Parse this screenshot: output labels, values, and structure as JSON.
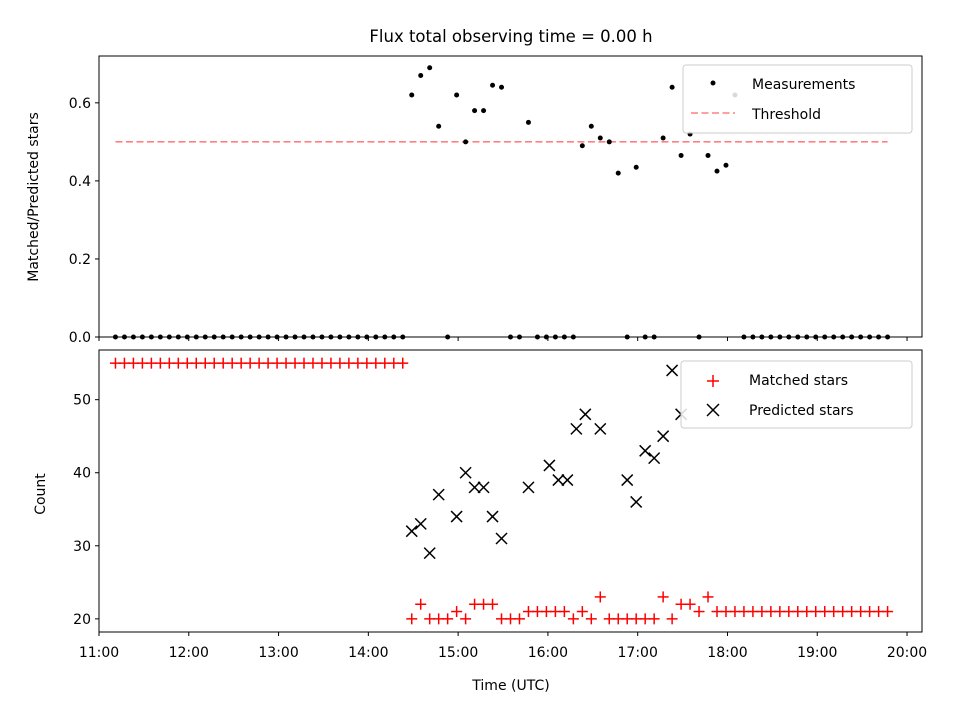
{
  "figure_title": "Flux total observing time = 0.00 h",
  "colors": {
    "measurement": "#000000",
    "threshold": "#ff8080",
    "matched": "#ff0000",
    "predicted": "#000000",
    "axis": "#000000"
  },
  "chart_data": [
    {
      "type": "scatter",
      "ylabel": "Matched/Predicted stars",
      "xlabel": "",
      "ylim": [
        0,
        0.72
      ],
      "yticks": [
        "0.0",
        "0.2",
        "0.4",
        "0.6"
      ],
      "xlim": [
        "11:00",
        "20:10"
      ],
      "legend": {
        "placement": "top-right",
        "entries": [
          "Measurements",
          "Threshold"
        ]
      },
      "threshold": {
        "name": "Threshold",
        "value": 0.5,
        "x_range": [
          "11:11",
          "19:47"
        ]
      },
      "series": [
        {
          "name": "Measurements",
          "marker": "dot",
          "x": [
            "11:11",
            "11:17",
            "11:23",
            "11:29",
            "11:35",
            "11:41",
            "11:47",
            "11:53",
            "11:59",
            "12:05",
            "12:11",
            "12:17",
            "12:23",
            "12:29",
            "12:35",
            "12:41",
            "12:47",
            "12:53",
            "12:59",
            "13:05",
            "13:11",
            "13:17",
            "13:23",
            "13:29",
            "13:35",
            "13:41",
            "13:47",
            "13:53",
            "13:59",
            "14:05",
            "14:11",
            "14:17",
            "14:23",
            "14:29",
            "14:35",
            "14:41",
            "14:47",
            "14:53",
            "14:59",
            "15:05",
            "15:11",
            "15:17",
            "15:23",
            "15:29",
            "15:35",
            "15:41",
            "15:47",
            "15:53",
            "15:59",
            "16:05",
            "16:11",
            "16:17",
            "16:23",
            "16:29",
            "16:35",
            "16:41",
            "16:47",
            "16:53",
            "16:59",
            "17:05",
            "17:11",
            "17:17",
            "17:23",
            "17:29",
            "17:35",
            "17:41",
            "17:47",
            "17:53",
            "17:59",
            "18:05",
            "18:11",
            "18:17",
            "18:23",
            "18:29",
            "18:35",
            "18:41",
            "18:47",
            "18:53",
            "18:59",
            "19:05",
            "19:11",
            "19:17",
            "19:23",
            "19:29",
            "19:35",
            "19:41",
            "19:47"
          ],
          "y": [
            0,
            0,
            0,
            0,
            0,
            0,
            0,
            0,
            0,
            0,
            0,
            0,
            0,
            0,
            0,
            0,
            0,
            0,
            0,
            0,
            0,
            0,
            0,
            0,
            0,
            0,
            0,
            0,
            0,
            0,
            0,
            0,
            0,
            0.62,
            0.67,
            0.69,
            0.54,
            0,
            0.62,
            0.5,
            0.58,
            0.58,
            0.645,
            0.64,
            0,
            0,
            0.55,
            0,
            0,
            0,
            0,
            0,
            0.49,
            0.54,
            0.51,
            0.5,
            0.42,
            0,
            0.435,
            0,
            0,
            0.51,
            0.64,
            0.465,
            0.52,
            0,
            0.465,
            0.425,
            0.44,
            0.62,
            0,
            0,
            0,
            0,
            0,
            0,
            0,
            0,
            0,
            0,
            0,
            0,
            0,
            0,
            0,
            0,
            0
          ]
        }
      ]
    },
    {
      "type": "scatter",
      "ylabel": "Count",
      "xlabel": "Time (UTC)",
      "ylim": [
        18.2,
        56.8
      ],
      "yticks": [
        "20",
        "30",
        "40",
        "50"
      ],
      "xlim": [
        "11:00",
        "20:10"
      ],
      "xticks": [
        "11:00",
        "12:00",
        "13:00",
        "14:00",
        "15:00",
        "16:00",
        "17:00",
        "18:00",
        "19:00",
        "20:00"
      ],
      "legend": {
        "placement": "top-right",
        "entries": [
          "Matched stars",
          "Predicted stars"
        ]
      },
      "series": [
        {
          "name": "Matched stars",
          "marker": "plus",
          "x": [
            "11:11",
            "11:17",
            "11:23",
            "11:29",
            "11:35",
            "11:41",
            "11:47",
            "11:53",
            "11:59",
            "12:05",
            "12:11",
            "12:17",
            "12:23",
            "12:29",
            "12:35",
            "12:41",
            "12:47",
            "12:53",
            "12:59",
            "13:05",
            "13:11",
            "13:17",
            "13:23",
            "13:29",
            "13:35",
            "13:41",
            "13:47",
            "13:53",
            "13:59",
            "14:05",
            "14:11",
            "14:17",
            "14:23",
            "14:29",
            "14:35",
            "14:41",
            "14:47",
            "14:53",
            "14:59",
            "15:05",
            "15:11",
            "15:17",
            "15:23",
            "15:29",
            "15:35",
            "15:41",
            "15:47",
            "15:53",
            "15:59",
            "16:05",
            "16:11",
            "16:17",
            "16:23",
            "16:29",
            "16:35",
            "16:41",
            "16:47",
            "16:53",
            "16:59",
            "17:05",
            "17:11",
            "17:17",
            "17:23",
            "17:29",
            "17:35",
            "17:41",
            "17:47",
            "17:53",
            "17:59",
            "18:05",
            "18:11",
            "18:17",
            "18:23",
            "18:29",
            "18:35",
            "18:41",
            "18:47",
            "18:53",
            "18:59",
            "19:05",
            "19:11",
            "19:17",
            "19:23",
            "19:29",
            "19:35",
            "19:41",
            "19:47"
          ],
          "y": [
            55,
            55,
            55,
            55,
            55,
            55,
            55,
            55,
            55,
            55,
            55,
            55,
            55,
            55,
            55,
            55,
            55,
            55,
            55,
            55,
            55,
            55,
            55,
            55,
            55,
            55,
            55,
            55,
            55,
            55,
            55,
            55,
            55,
            20,
            22,
            20,
            20,
            20,
            21,
            20,
            22,
            22,
            22,
            20,
            20,
            20,
            21,
            21,
            21,
            21,
            21,
            20,
            21,
            20,
            23,
            20,
            20,
            20,
            20,
            20,
            20,
            23,
            20,
            22,
            22,
            21,
            23,
            21,
            21,
            21,
            21,
            21,
            21,
            21,
            21,
            21,
            21,
            21,
            21,
            21,
            21,
            21,
            21,
            21,
            21,
            21,
            21
          ]
        },
        {
          "name": "Predicted stars",
          "marker": "x",
          "x": [
            "14:29",
            "14:35",
            "14:41",
            "14:47",
            "14:59",
            "15:05",
            "15:11",
            "15:17",
            "15:23",
            "15:29",
            "15:47",
            "16:01",
            "16:07",
            "16:13",
            "16:19",
            "16:25",
            "16:35",
            "16:53",
            "16:59",
            "17:05",
            "17:11",
            "17:17",
            "17:23",
            "17:29"
          ],
          "y": [
            32,
            33,
            29,
            37,
            34,
            40,
            38,
            38,
            34,
            31,
            38,
            41,
            39,
            39,
            46,
            48,
            46,
            39,
            36,
            43,
            42,
            45,
            54,
            48
          ]
        }
      ]
    }
  ]
}
